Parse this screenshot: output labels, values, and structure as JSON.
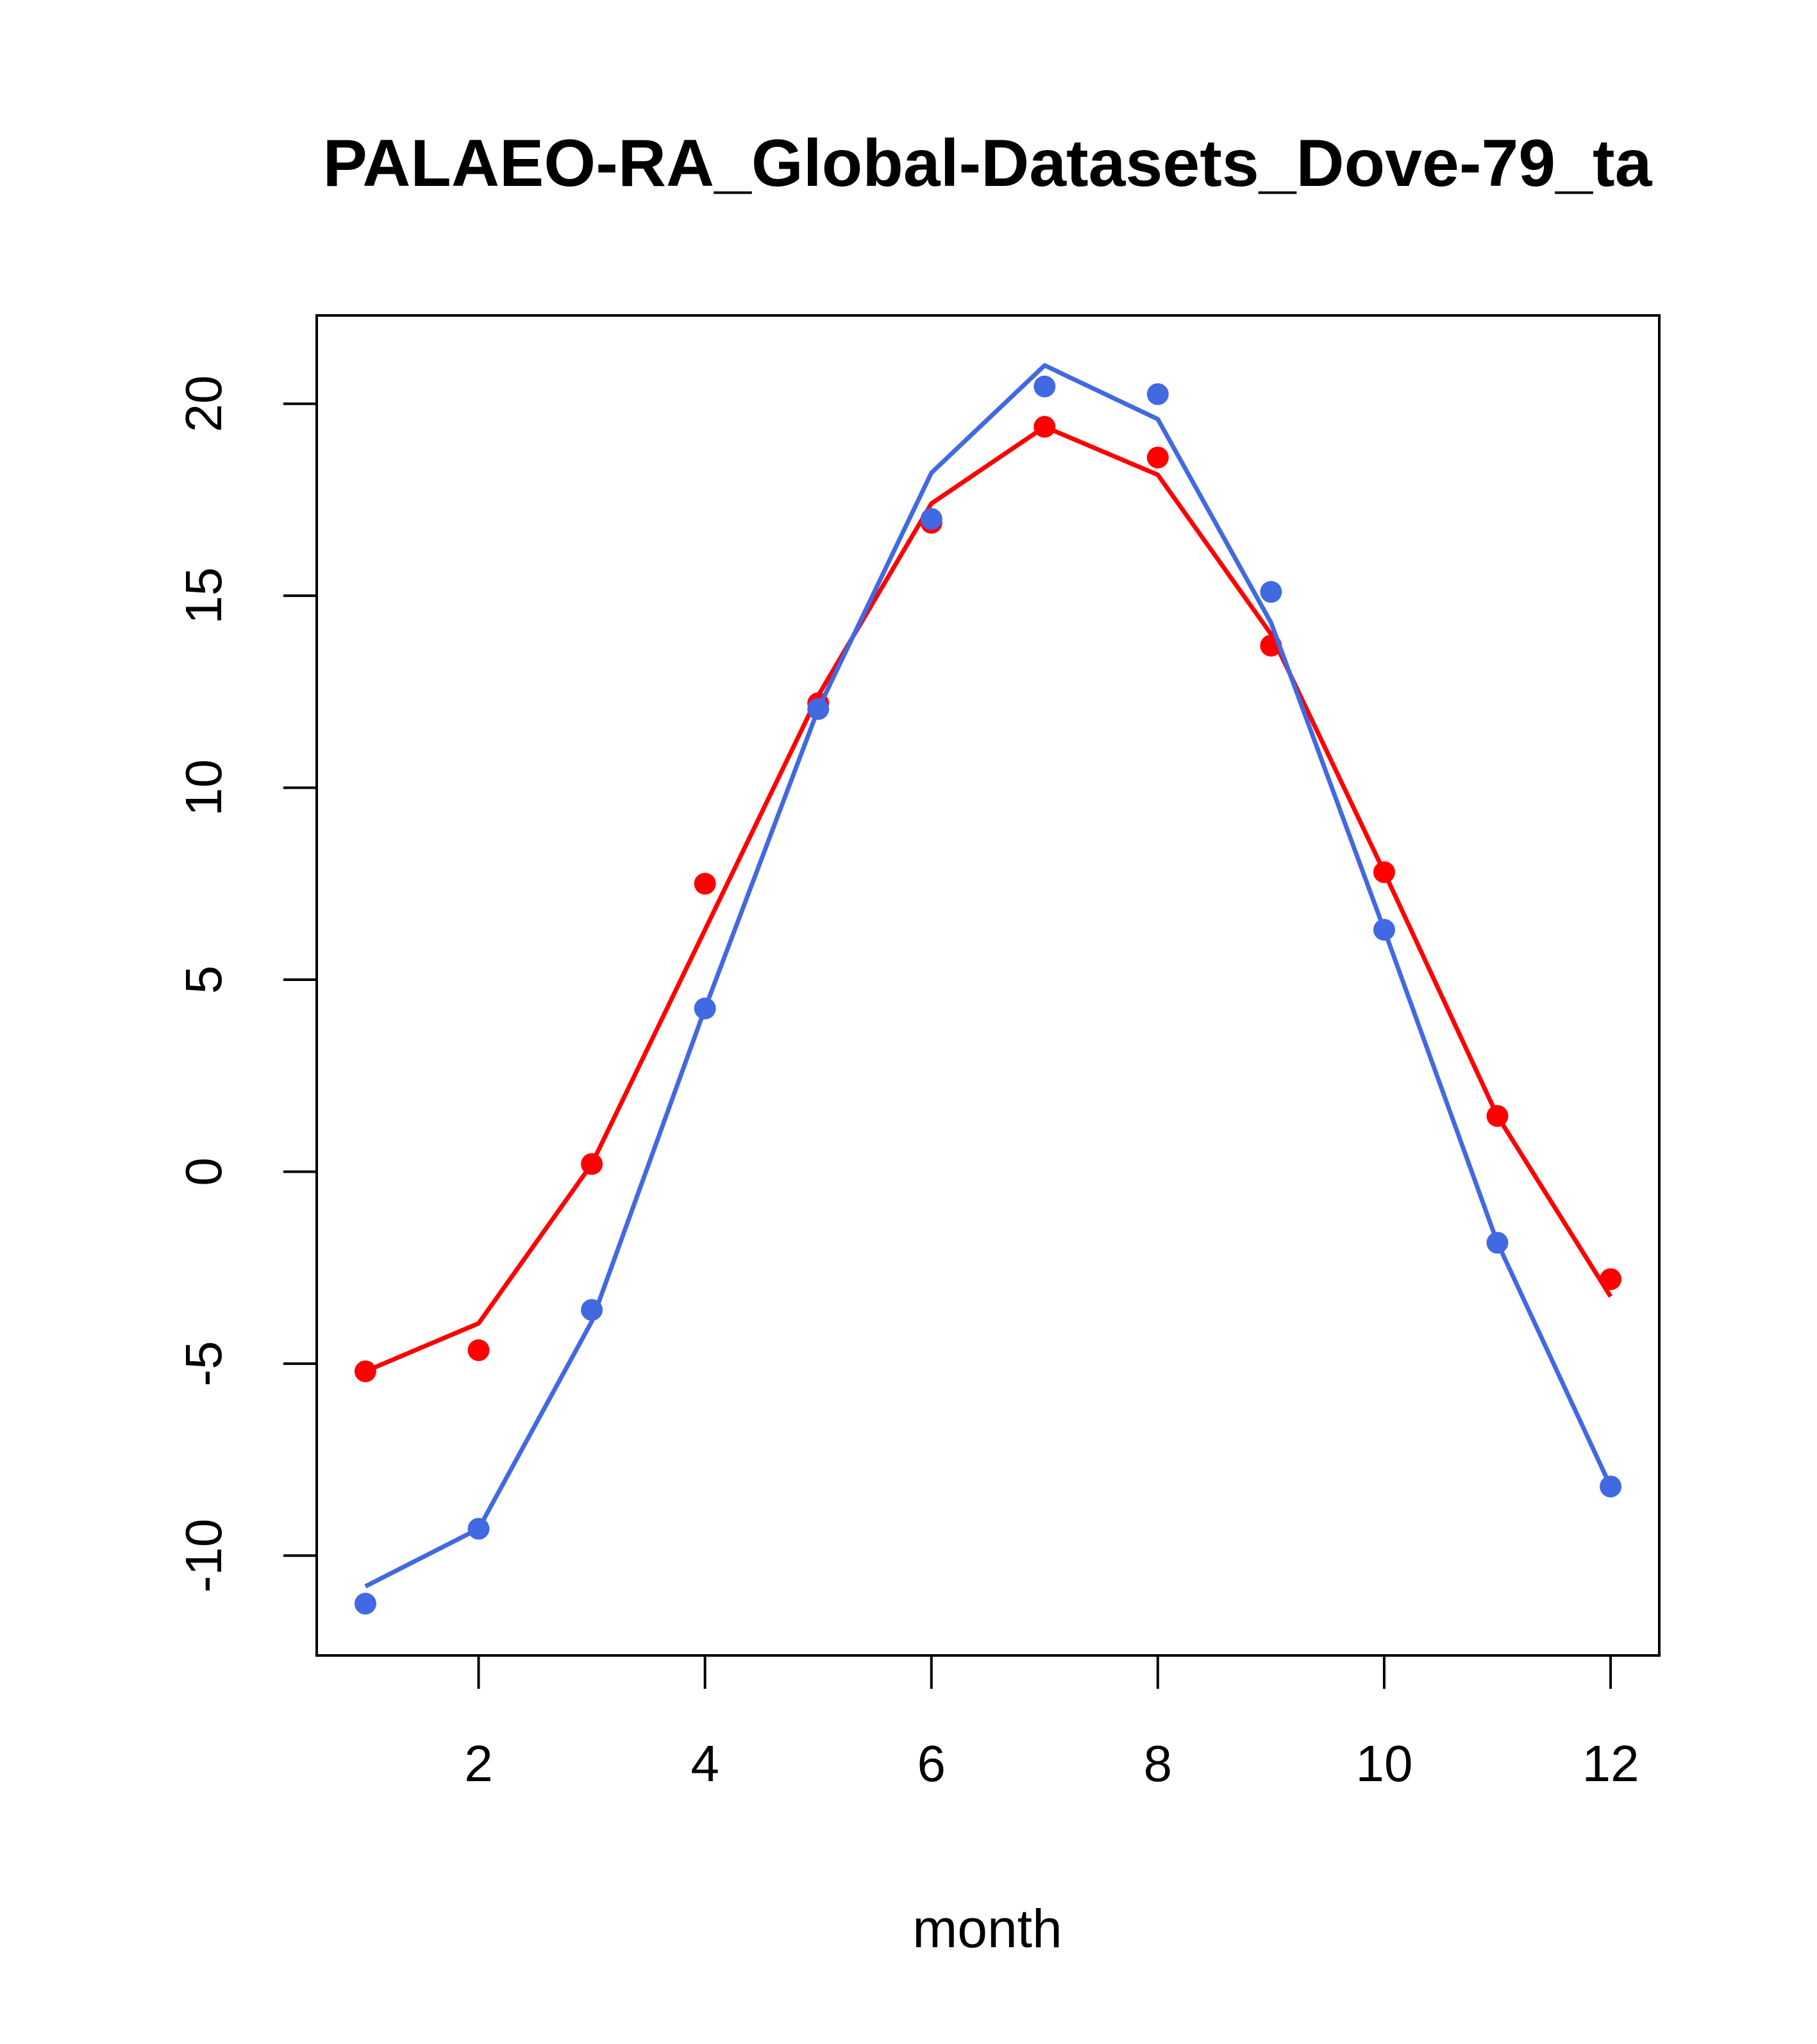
{
  "chart_data": {
    "type": "line",
    "title": "PALAEO-RA_Global-Datasets_Dove-79_ta",
    "xlabel": "month",
    "ylabel": "",
    "xlim": [
      0.57,
      12.43
    ],
    "ylim": [
      -12.6,
      22.3
    ],
    "x_ticks": [
      2,
      4,
      6,
      8,
      10,
      12
    ],
    "y_ticks": [
      -10,
      -5,
      0,
      5,
      10,
      15,
      20
    ],
    "grid": false,
    "legend": "none",
    "x": [
      1,
      2,
      3,
      4,
      5,
      6,
      7,
      8,
      9,
      10,
      11,
      12
    ],
    "series": [
      {
        "color": "#ff0000",
        "points": [
          -5.2,
          -4.65,
          0.2,
          7.5,
          12.2,
          16.9,
          19.4,
          18.6,
          13.7,
          7.8,
          1.45,
          -2.8
        ],
        "line": [
          -5.2,
          -3.95,
          0.2,
          6.3,
          12.4,
          17.4,
          19.4,
          18.15,
          14.0,
          7.8,
          1.45,
          -3.25
        ]
      },
      {
        "color": "#4169e1",
        "points": [
          -11.25,
          -9.3,
          -3.6,
          4.25,
          12.05,
          17.0,
          20.45,
          20.25,
          15.1,
          6.3,
          -1.85,
          -8.2
        ],
        "line": [
          -10.8,
          -9.3,
          -3.9,
          4.25,
          12.05,
          18.2,
          21.0,
          19.6,
          14.3,
          6.3,
          -1.85,
          -8.2
        ]
      }
    ]
  }
}
